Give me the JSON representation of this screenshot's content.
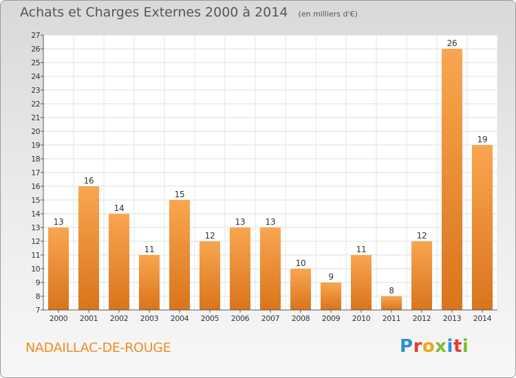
{
  "header": {
    "title": "Achats et Charges Externes 2000 à 2014",
    "unit": "(en milliers d'€)"
  },
  "footer": {
    "location": "NADAILLAC-DE-ROUGE",
    "brand": "Proxiti"
  },
  "colors": {
    "bar_light": "#f9a650",
    "bar_dark": "#d9741c",
    "location_text": "#f28c1e"
  },
  "chart_data": {
    "type": "bar",
    "title": "Achats et Charges Externes 2000 à 2014",
    "unit_label": "(en milliers d'€)",
    "categories": [
      "2000",
      "2001",
      "2002",
      "2003",
      "2004",
      "2005",
      "2006",
      "2007",
      "2008",
      "2009",
      "2010",
      "2011",
      "2012",
      "2013",
      "2014"
    ],
    "values": [
      13,
      16,
      14,
      11,
      15,
      12,
      13,
      13,
      10,
      9,
      11,
      8,
      12,
      26,
      19
    ],
    "ylim": [
      7,
      27
    ],
    "yticks": [
      7,
      8,
      9,
      10,
      11,
      12,
      13,
      14,
      15,
      16,
      17,
      18,
      19,
      20,
      21,
      22,
      23,
      24,
      25,
      26,
      27
    ],
    "grid": true,
    "data_labels": true
  }
}
